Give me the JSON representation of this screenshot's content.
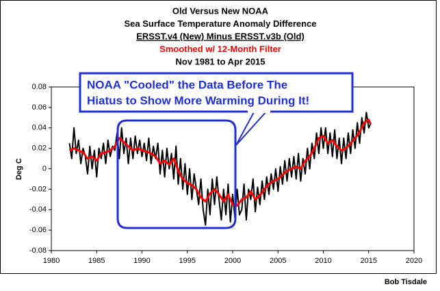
{
  "chart_data": {
    "type": "line",
    "title_lines": [
      "Old Versus New NOAA",
      "Sea Surface Temperature Anomaly Difference",
      "ERSST.v4 (New) Minus ERSST.v3b (Old)",
      "Smoothed w/ 12-Month Filter",
      "Nov 1981 to Apr 2015"
    ],
    "ylabel": "Deg C",
    "annotation_lines": [
      "NOAA \"Cooled\" the Data Before The",
      "Hiatus to Show More Warming During It!"
    ],
    "credit": "Bob Tisdale",
    "xlim": [
      1980,
      2020
    ],
    "xticks": [
      1980,
      1985,
      1990,
      1995,
      2000,
      2005,
      2010,
      2015,
      2020
    ],
    "ylim": [
      -0.08,
      0.08
    ],
    "yticks": [
      -0.08,
      -0.06,
      -0.04,
      -0.02,
      0,
      0.02,
      0.04,
      0.06,
      0.08
    ],
    "series": [
      {
        "color": "#000000",
        "x": [
          1982,
          1982.25,
          1982.5,
          1982.75,
          1983,
          1983.25,
          1983.5,
          1983.75,
          1984,
          1984.25,
          1984.5,
          1984.75,
          1985,
          1985.25,
          1985.5,
          1985.75,
          1986,
          1986.25,
          1986.5,
          1986.75,
          1987,
          1987.25,
          1987.5,
          1987.75,
          1988,
          1988.25,
          1988.5,
          1988.75,
          1989,
          1989.25,
          1989.5,
          1989.75,
          1990,
          1990.25,
          1990.5,
          1990.75,
          1991,
          1991.25,
          1991.5,
          1991.75,
          1992,
          1992.25,
          1992.5,
          1992.75,
          1993,
          1993.25,
          1993.5,
          1993.75,
          1994,
          1994.25,
          1994.5,
          1994.75,
          1995,
          1995.25,
          1995.5,
          1995.75,
          1996,
          1996.25,
          1996.5,
          1996.75,
          1997,
          1997.25,
          1997.5,
          1997.75,
          1998,
          1998.25,
          1998.5,
          1998.75,
          1999,
          1999.25,
          1999.5,
          1999.75,
          2000,
          2000.25,
          2000.5,
          2000.75,
          2001,
          2001.25,
          2001.5,
          2001.75,
          2002,
          2002.25,
          2002.5,
          2002.75,
          2003,
          2003.25,
          2003.5,
          2003.75,
          2004,
          2004.25,
          2004.5,
          2004.75,
          2005,
          2005.25,
          2005.5,
          2005.75,
          2006,
          2006.25,
          2006.5,
          2006.75,
          2007,
          2007.25,
          2007.5,
          2007.75,
          2008,
          2008.25,
          2008.5,
          2008.75,
          2009,
          2009.25,
          2009.5,
          2009.75,
          2010,
          2010.25,
          2010.5,
          2010.75,
          2011,
          2011.25,
          2011.5,
          2011.75,
          2012,
          2012.25,
          2012.5,
          2012.75,
          2013,
          2013.25,
          2013.5,
          2013.75,
          2014,
          2014.25,
          2014.5,
          2014.75,
          2015,
          2015.25
        ],
        "values": [
          0.025,
          0.01,
          0.04,
          0.015,
          0.028,
          0.005,
          0.02,
          0.012,
          -0.005,
          0.022,
          0.0,
          0.018,
          -0.008,
          0.02,
          0.01,
          0.025,
          0.005,
          0.028,
          0.012,
          0.022,
          0.018,
          0.035,
          0.01,
          0.04,
          0.015,
          0.03,
          0.005,
          0.03,
          0.01,
          0.032,
          0.015,
          0.028,
          0.012,
          0.025,
          0.008,
          0.03,
          0.005,
          0.022,
          0.01,
          0.025,
          -0.005,
          0.018,
          -0.008,
          0.02,
          0.0,
          0.015,
          -0.01,
          0.022,
          -0.015,
          0.01,
          -0.02,
          0.005,
          -0.025,
          0.0,
          -0.03,
          -0.005,
          -0.02,
          -0.035,
          -0.01,
          -0.04,
          -0.055,
          -0.02,
          -0.045,
          -0.01,
          -0.035,
          -0.008,
          -0.03,
          -0.05,
          -0.02,
          -0.045,
          -0.015,
          -0.052,
          -0.025,
          -0.048,
          -0.02,
          -0.045,
          -0.04,
          -0.015,
          -0.05,
          -0.02,
          -0.03,
          -0.01,
          -0.042,
          -0.018,
          -0.035,
          -0.012,
          -0.03,
          -0.008,
          -0.025,
          -0.005,
          -0.02,
          0.0,
          -0.022,
          0.002,
          -0.015,
          0.008,
          -0.012,
          0.01,
          -0.008,
          0.012,
          -0.01,
          0.015,
          -0.012,
          0.01,
          -0.005,
          0.02,
          0.0,
          0.025,
          0.01,
          0.035,
          0.015,
          0.04,
          0.02,
          0.04,
          0.015,
          0.035,
          0.012,
          0.038,
          0.01,
          0.03,
          0.005,
          0.03,
          0.01,
          0.035,
          0.015,
          0.038,
          0.02,
          0.045,
          0.025,
          0.05,
          0.035,
          0.055,
          0.04,
          0.045
        ]
      },
      {
        "color": "#ff0000",
        "x": [
          1982,
          1982.5,
          1983,
          1983.5,
          1984,
          1984.5,
          1985,
          1985.5,
          1986,
          1986.5,
          1987,
          1987.5,
          1988,
          1988.5,
          1989,
          1989.5,
          1990,
          1990.5,
          1991,
          1991.5,
          1992,
          1992.5,
          1993,
          1993.5,
          1994,
          1994.5,
          1995,
          1995.5,
          1996,
          1996.5,
          1997,
          1997.5,
          1998,
          1998.5,
          1999,
          1999.5,
          2000,
          2000.5,
          2001,
          2001.5,
          2002,
          2002.5,
          2003,
          2003.5,
          2004,
          2004.5,
          2005,
          2005.5,
          2006,
          2006.5,
          2007,
          2007.5,
          2008,
          2008.5,
          2009,
          2009.5,
          2010,
          2010.5,
          2011,
          2011.5,
          2012,
          2012.5,
          2013,
          2013.5,
          2014,
          2014.5,
          2015,
          2015.2
        ],
        "values": [
          0.018,
          0.02,
          0.018,
          0.016,
          0.01,
          0.012,
          0.008,
          0.015,
          0.016,
          0.018,
          0.022,
          0.03,
          0.026,
          0.022,
          0.018,
          0.02,
          0.018,
          0.017,
          0.015,
          0.012,
          0.005,
          0.008,
          0.004,
          0.01,
          -0.002,
          -0.01,
          -0.014,
          -0.016,
          -0.02,
          -0.028,
          -0.032,
          -0.024,
          -0.02,
          -0.025,
          -0.032,
          -0.025,
          -0.035,
          -0.036,
          -0.03,
          -0.028,
          -0.022,
          -0.03,
          -0.026,
          -0.02,
          -0.015,
          -0.012,
          -0.01,
          -0.006,
          -0.002,
          0.0,
          0.002,
          0.0,
          0.008,
          0.012,
          0.02,
          0.03,
          0.032,
          0.025,
          0.028,
          0.022,
          0.018,
          0.02,
          0.025,
          0.03,
          0.036,
          0.045,
          0.048,
          0.044
        ]
      }
    ]
  }
}
